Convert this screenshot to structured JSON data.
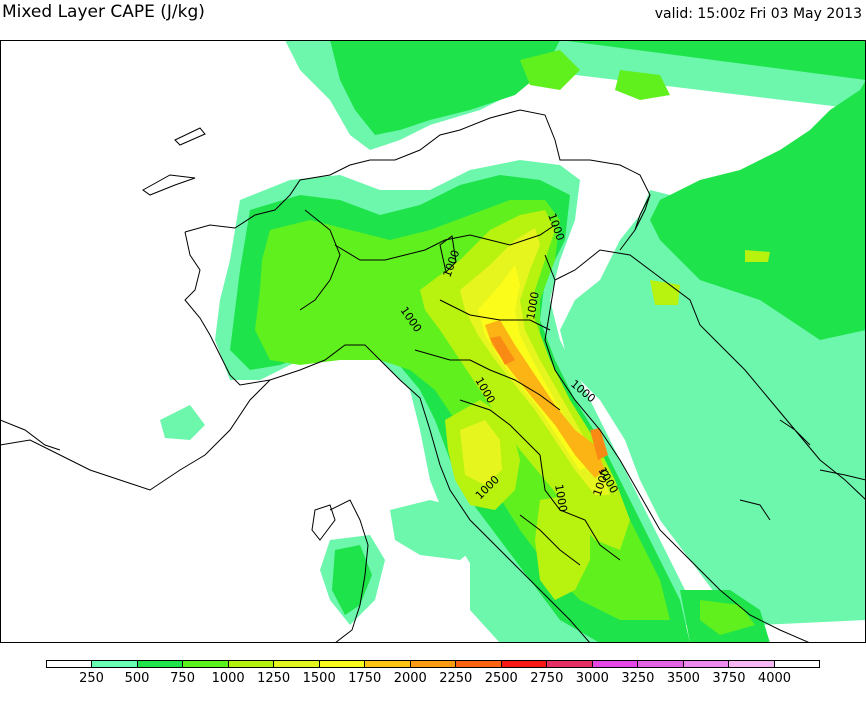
{
  "header": {
    "title": "Mixed Layer CAPE (J/kg)",
    "valid": "valid: 15:00z Fri 03 May 2013"
  },
  "map": {
    "contour_labels": [
      {
        "id": "c1",
        "text": "1000"
      },
      {
        "id": "c2",
        "text": "1000"
      },
      {
        "id": "c3",
        "text": "1000"
      },
      {
        "id": "c4",
        "text": "1000"
      },
      {
        "id": "c5",
        "text": "1000"
      },
      {
        "id": "c6",
        "text": "1000"
      },
      {
        "id": "c7",
        "text": "1000"
      },
      {
        "id": "c8",
        "text": "1000"
      },
      {
        "id": "c9",
        "text": "1000"
      },
      {
        "id": "c10",
        "text": "1000"
      }
    ]
  },
  "colorbar": {
    "colors": [
      "#ffffff",
      "#66ffb3",
      "#21e34a",
      "#5cf21e",
      "#b5f20f",
      "#e5f51e",
      "#fcfc1a",
      "#fcc414",
      "#fc9c14",
      "#fc6414",
      "#f71717",
      "#e52e63",
      "#e548e5",
      "#e463e4",
      "#ed8aed",
      "#f5b8f5",
      "#ffffff"
    ],
    "ticks": [
      "250",
      "500",
      "750",
      "1000",
      "1250",
      "1500",
      "1750",
      "2000",
      "2250",
      "2500",
      "2750",
      "3000",
      "3250",
      "3500",
      "3750",
      "4000"
    ]
  }
}
